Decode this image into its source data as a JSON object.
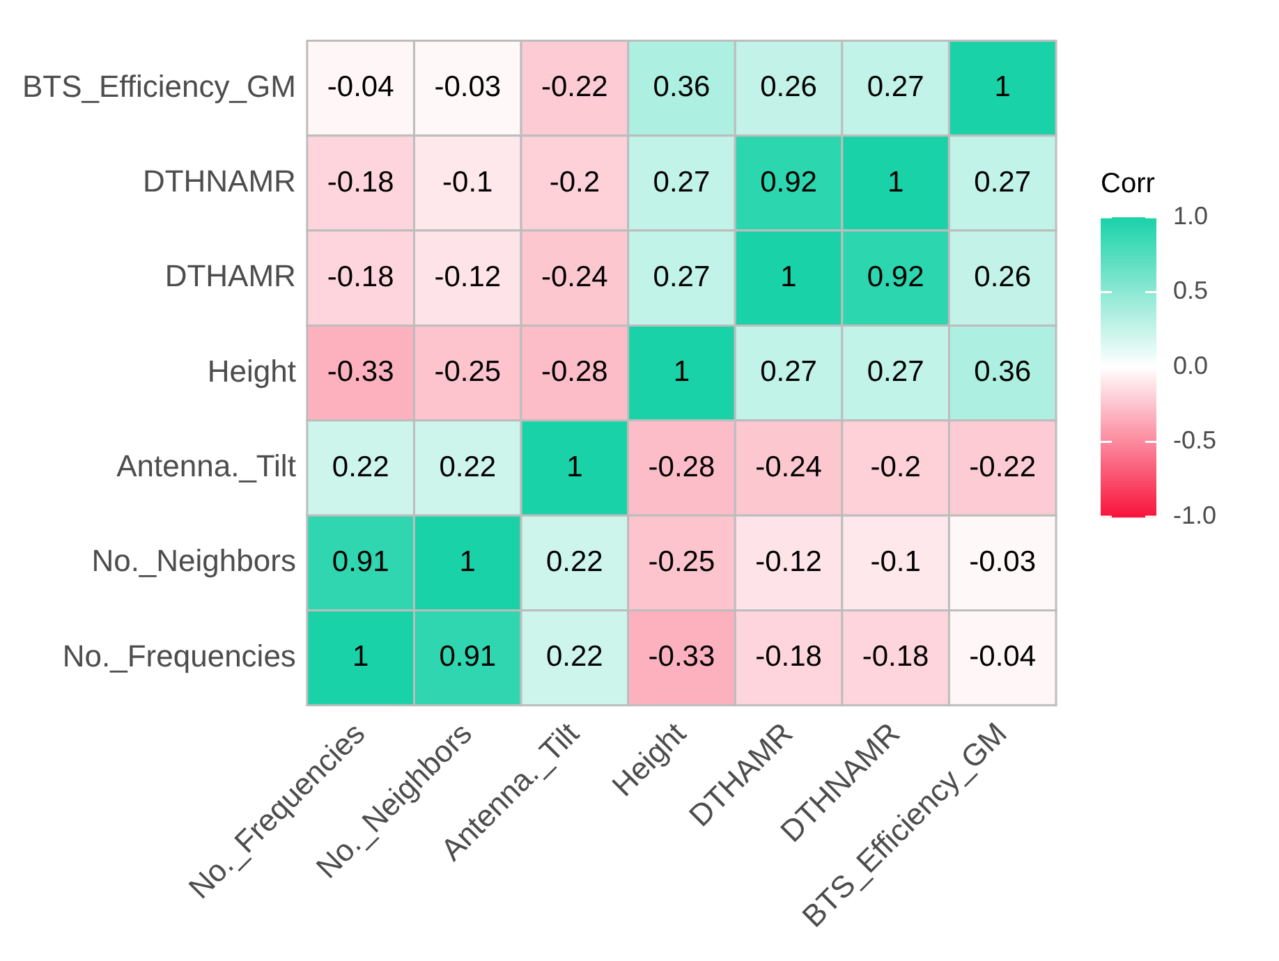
{
  "chart_data": {
    "type": "heatmap",
    "legend_title": "Corr",
    "categories": [
      "No._Frequencies",
      "No._Neighbors",
      "Antenna._Tilt",
      "Height",
      "DTHAMR",
      "DTHNAMR",
      "BTS_Efficiency_GM"
    ],
    "y_categories": [
      "BTS_Efficiency_GM",
      "DTHNAMR",
      "DTHAMR",
      "Height",
      "Antenna._Tilt",
      "No._Neighbors",
      "No._Frequencies"
    ],
    "cells": [
      [
        -0.04,
        -0.03,
        -0.22,
        0.36,
        0.26,
        0.27,
        1
      ],
      [
        -0.18,
        -0.1,
        -0.2,
        0.27,
        0.92,
        1,
        0.27
      ],
      [
        -0.18,
        -0.12,
        -0.24,
        0.27,
        1,
        0.92,
        0.26
      ],
      [
        -0.33,
        -0.25,
        -0.28,
        1,
        0.27,
        0.27,
        0.36
      ],
      [
        0.22,
        0.22,
        1,
        -0.28,
        -0.24,
        -0.2,
        -0.22
      ],
      [
        0.91,
        1,
        0.22,
        -0.25,
        -0.12,
        -0.1,
        -0.03
      ],
      [
        1,
        0.91,
        0.22,
        -0.33,
        -0.18,
        -0.18,
        -0.04
      ]
    ],
    "clim": [
      -1,
      1
    ],
    "cticks": [
      {
        "value": 1,
        "label": "1.0"
      },
      {
        "value": 0.5,
        "label": "0.5"
      },
      {
        "value": 0,
        "label": "0.0"
      },
      {
        "value": -0.5,
        "label": "-0.5"
      },
      {
        "value": -1,
        "label": "-1.0"
      }
    ],
    "data_labels": true
  }
}
